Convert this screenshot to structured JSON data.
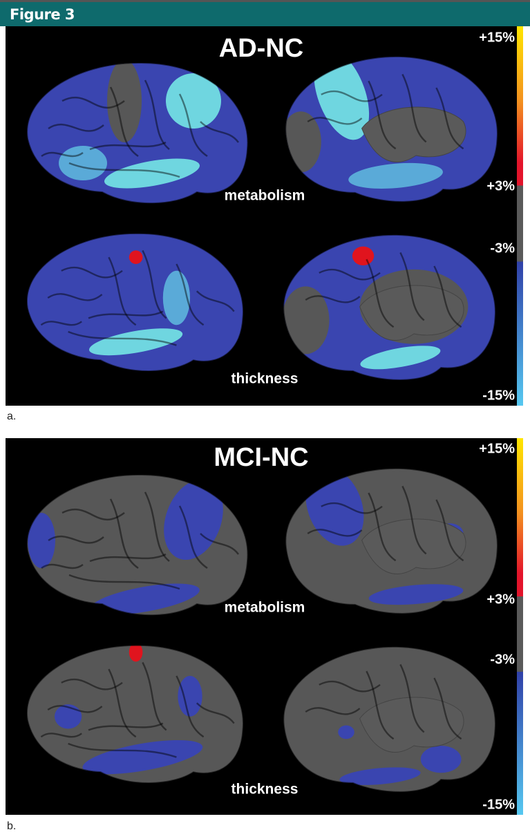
{
  "header": {
    "title": "Figure 3"
  },
  "panels": [
    {
      "title": "AD-NC",
      "row_labels": [
        "metabolism",
        "thickness"
      ],
      "scale_labels": [
        "+15%",
        "+3%",
        "-3%",
        "-15%"
      ],
      "caption": "a."
    },
    {
      "title": "MCI-NC",
      "row_labels": [
        "metabolism",
        "thickness"
      ],
      "scale_labels": [
        "+15%",
        "+3%",
        "-3%",
        "-15%"
      ],
      "caption": "b."
    }
  ]
}
